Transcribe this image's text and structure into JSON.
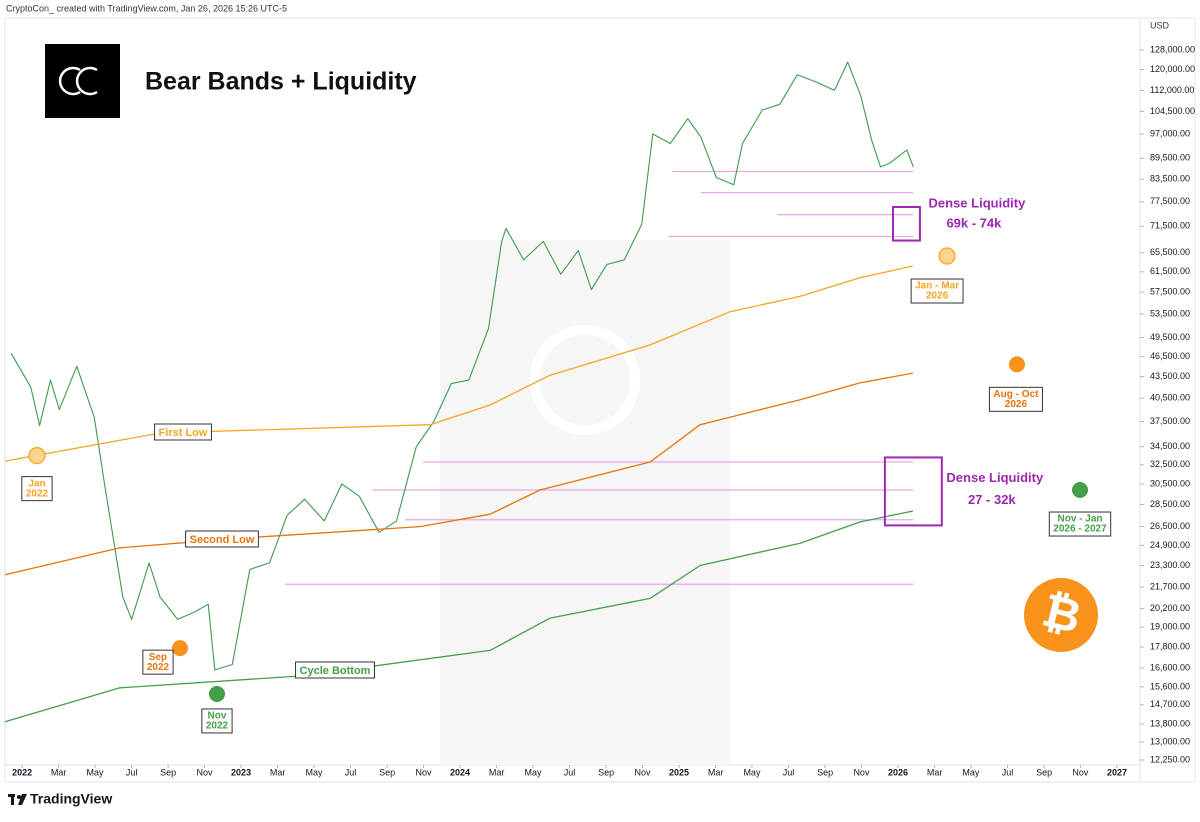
{
  "header": {
    "credit": "CryptoCon_ created with TradingView.com, Jan 26, 2026 15:26 UTC-5",
    "currency": "USD",
    "footer": "TradingView"
  },
  "chart_data": {
    "type": "line",
    "title": "Bear Bands + Liquidity",
    "log_y": true,
    "xlim": [
      2021.922,
      2027.105
    ],
    "ylim": [
      12050,
      142300
    ],
    "xticks": [
      2022,
      {
        "value": 2022.167,
        "label": "Mar"
      },
      {
        "value": 2022.333,
        "label": "May"
      },
      {
        "value": 2022.5,
        "label": "Jul"
      },
      {
        "value": 2022.667,
        "label": "Sep"
      },
      {
        "value": 2022.833,
        "label": "Nov"
      },
      2023,
      {
        "value": 2023.167,
        "label": "Mar"
      },
      {
        "value": 2023.333,
        "label": "May"
      },
      {
        "value": 2023.5,
        "label": "Jul"
      },
      {
        "value": 2023.667,
        "label": "Sep"
      },
      {
        "value": 2023.833,
        "label": "Nov"
      },
      2024,
      {
        "value": 2024.167,
        "label": "Mar"
      },
      {
        "value": 2024.333,
        "label": "May"
      },
      {
        "value": 2024.5,
        "label": "Jul"
      },
      {
        "value": 2024.667,
        "label": "Sep"
      },
      {
        "value": 2024.833,
        "label": "Nov"
      },
      2025,
      {
        "value": 2025.167,
        "label": "Mar"
      },
      {
        "value": 2025.333,
        "label": "May"
      },
      {
        "value": 2025.5,
        "label": "Jul"
      },
      {
        "value": 2025.667,
        "label": "Sep"
      },
      {
        "value": 2025.833,
        "label": "Nov"
      },
      2026,
      {
        "value": 2026.167,
        "label": "Mar"
      },
      {
        "value": 2026.333,
        "label": "May"
      },
      {
        "value": 2026.5,
        "label": "Jul"
      },
      {
        "value": 2026.667,
        "label": "Sep"
      },
      {
        "value": 2026.833,
        "label": "Nov"
      },
      2027
    ],
    "yticks": [
      {
        "value": 128000,
        "label": "128,000.00"
      },
      {
        "value": 120000,
        "label": "120,000.00"
      },
      {
        "value": 112000,
        "label": "112,000.00"
      },
      {
        "value": 104500,
        "label": "104,500.00"
      },
      {
        "value": 97000,
        "label": "97,000.00"
      },
      {
        "value": 89500,
        "label": "89,500.00"
      },
      {
        "value": 83500,
        "label": "83,500.00"
      },
      {
        "value": 77500,
        "label": "77,500.00"
      },
      {
        "value": 71500,
        "label": "71,500.00"
      },
      {
        "value": 65500,
        "label": "65,500.00"
      },
      {
        "value": 61500,
        "label": "61,500.00"
      },
      {
        "value": 57500,
        "label": "57,500.00"
      },
      {
        "value": 53500,
        "label": "53,500.00"
      },
      {
        "value": 49500,
        "label": "49,500.00"
      },
      {
        "value": 46500,
        "label": "46,500.00"
      },
      {
        "value": 43500,
        "label": "43,500.00"
      },
      {
        "value": 40500,
        "label": "40,500.00"
      },
      {
        "value": 37500,
        "label": "37,500.00"
      },
      {
        "value": 34500,
        "label": "34,500.00"
      },
      {
        "value": 32500,
        "label": "32,500.00"
      },
      {
        "value": 30500,
        "label": "30,500.00"
      },
      {
        "value": 28500,
        "label": "28,500.00"
      },
      {
        "value": 26500,
        "label": "26,500.00"
      },
      {
        "value": 24900,
        "label": "24,900.00"
      },
      {
        "value": 23300,
        "label": "23,300.00"
      },
      {
        "value": 21700,
        "label": "21,700.00"
      },
      {
        "value": 20200,
        "label": "20,200.00"
      },
      {
        "value": 19000,
        "label": "19,000.00"
      },
      {
        "value": 17800,
        "label": "17,800.00"
      },
      {
        "value": 16600,
        "label": "16,600.00"
      },
      {
        "value": 15600,
        "label": "15,600.00"
      },
      {
        "value": 14700,
        "label": "14,700.00"
      },
      {
        "value": 13800,
        "label": "13,800.00"
      },
      {
        "value": 13000,
        "label": "13,000.00"
      },
      {
        "value": 12250,
        "label": "12,250.00"
      }
    ],
    "series": [
      {
        "color": "#3e9b4f",
        "x": [
          2021.95,
          2022.04,
          2022.08,
          2022.13,
          2022.17,
          2022.25,
          2022.33,
          2022.38,
          2022.46,
          2022.5,
          2022.58,
          2022.63,
          2022.71,
          2022.79,
          2022.85,
          2022.88,
          2022.96,
          2023.04,
          2023.13,
          2023.21,
          2023.29,
          2023.38,
          2023.46,
          2023.54,
          2023.63,
          2023.71,
          2023.8,
          2023.88,
          2023.96,
          2024.04,
          2024.13,
          2024.19,
          2024.21,
          2024.29,
          2024.38,
          2024.46,
          2024.54,
          2024.6,
          2024.67,
          2024.75,
          2024.83,
          2024.88,
          2024.96,
          2025.04,
          2025.1,
          2025.17,
          2025.25,
          2025.29,
          2025.38,
          2025.46,
          2025.54,
          2025.63,
          2025.71,
          2025.77,
          2025.83,
          2025.88,
          2025.92,
          2025.96,
          2026.04,
          2026.07
        ],
        "values": [
          47000,
          42000,
          37000,
          43000,
          39000,
          45000,
          38000,
          30000,
          21000,
          19500,
          23500,
          21000,
          19500,
          20000,
          20500,
          16500,
          16800,
          23000,
          23500,
          27500,
          29000,
          27000,
          30500,
          29300,
          26000,
          27000,
          34500,
          37500,
          42500,
          43000,
          51000,
          68000,
          71000,
          64000,
          68000,
          61000,
          66000,
          58000,
          63000,
          64000,
          72000,
          97000,
          94000,
          102000,
          96000,
          84000,
          82000,
          94000,
          105000,
          107000,
          118000,
          115000,
          112000,
          123000,
          110000,
          95000,
          87000,
          88000,
          92000,
          87000
        ]
      },
      {
        "name": "First Low",
        "color": "#f5a623",
        "x": [
          2021.922,
          2022.63,
          2023.863,
          2024.137,
          2024.411,
          2024.868,
          2025.233,
          2025.553,
          2025.826,
          2026.068
        ],
        "values": [
          32900,
          36100,
          37100,
          39600,
          43700,
          48300,
          53900,
          56700,
          60300,
          62700
        ]
      },
      {
        "name": "Second Low",
        "color": "#e8730c",
        "x": [
          2021.922,
          2022.447,
          2022.995,
          2023.817,
          2024.137,
          2024.365,
          2024.868,
          2025.096,
          2025.553,
          2025.826,
          2026.068
        ],
        "values": [
          22600,
          24700,
          25500,
          26500,
          27600,
          29900,
          32800,
          37100,
          40300,
          42600,
          44000
        ]
      },
      {
        "name": "Cycle Bottom",
        "color": "#43a047",
        "x": [
          2021.922,
          2022.447,
          2023.269,
          2024.137,
          2024.411,
          2024.868,
          2025.096,
          2025.553,
          2025.826,
          2026.068
        ],
        "values": [
          13900,
          15550,
          16170,
          17600,
          19580,
          20900,
          23300,
          25080,
          26900,
          27900
        ]
      }
    ],
    "levels_end": 2026.07,
    "levels_color": "#e7a8e7",
    "levels": [
      {
        "start": 2025.45,
        "value": 74300
      },
      {
        "start": 2024.95,
        "value": 69100
      },
      {
        "start": 2024.97,
        "value": 85700
      },
      {
        "start": 2025.1,
        "value": 79900
      },
      {
        "start": 2023.83,
        "value": 32800
      },
      {
        "start": 2023.6,
        "value": 29900
      },
      {
        "start": 2023.75,
        "value": 27100
      },
      {
        "start": 2023.2,
        "value": 21900
      }
    ],
    "zones": [
      {
        "label": "Dense Liquidity",
        "range_label": "69k - 74k",
        "xlim": [
          2025.977,
          2026.1
        ],
        "ylim": [
          68200,
          76200
        ],
        "color": "#9c27b0"
      },
      {
        "label": "Dense Liquidity",
        "range_label": "27 - 32k",
        "xlim": [
          2025.94,
          2026.2
        ],
        "ylim": [
          26600,
          33300
        ],
        "color": "#9c27b0"
      }
    ],
    "markers": [
      {
        "x": 2022.068,
        "y": 33500,
        "label": [
          "Jan",
          "2022"
        ],
        "color": "#fbd38d",
        "text_color": "#f5a623"
      },
      {
        "x": 2022.721,
        "y": 17730,
        "label": [
          "Sep",
          "2022"
        ],
        "color": "#f7931a",
        "text_color": "#e8730c"
      },
      {
        "x": 2022.89,
        "y": 15240,
        "label": [
          "Nov",
          "2022"
        ],
        "color": "#43a047",
        "text_color": "#43a047"
      },
      {
        "x": 2026.224,
        "y": 64800,
        "label": [
          "Jan - Mar",
          "2026"
        ],
        "color": "#fbd38d",
        "text_color": "#f5a623"
      },
      {
        "x": 2026.543,
        "y": 45300,
        "label": [
          "Aug - Oct",
          "2026"
        ],
        "color": "#f7931a",
        "text_color": "#e8730c"
      },
      {
        "x": 2026.831,
        "y": 29900,
        "label": [
          "Nov - Jan",
          "2026 - 2027"
        ],
        "color": "#43a047",
        "text_color": "#43a047"
      }
    ],
    "bitcoin_symbol": "₿"
  }
}
